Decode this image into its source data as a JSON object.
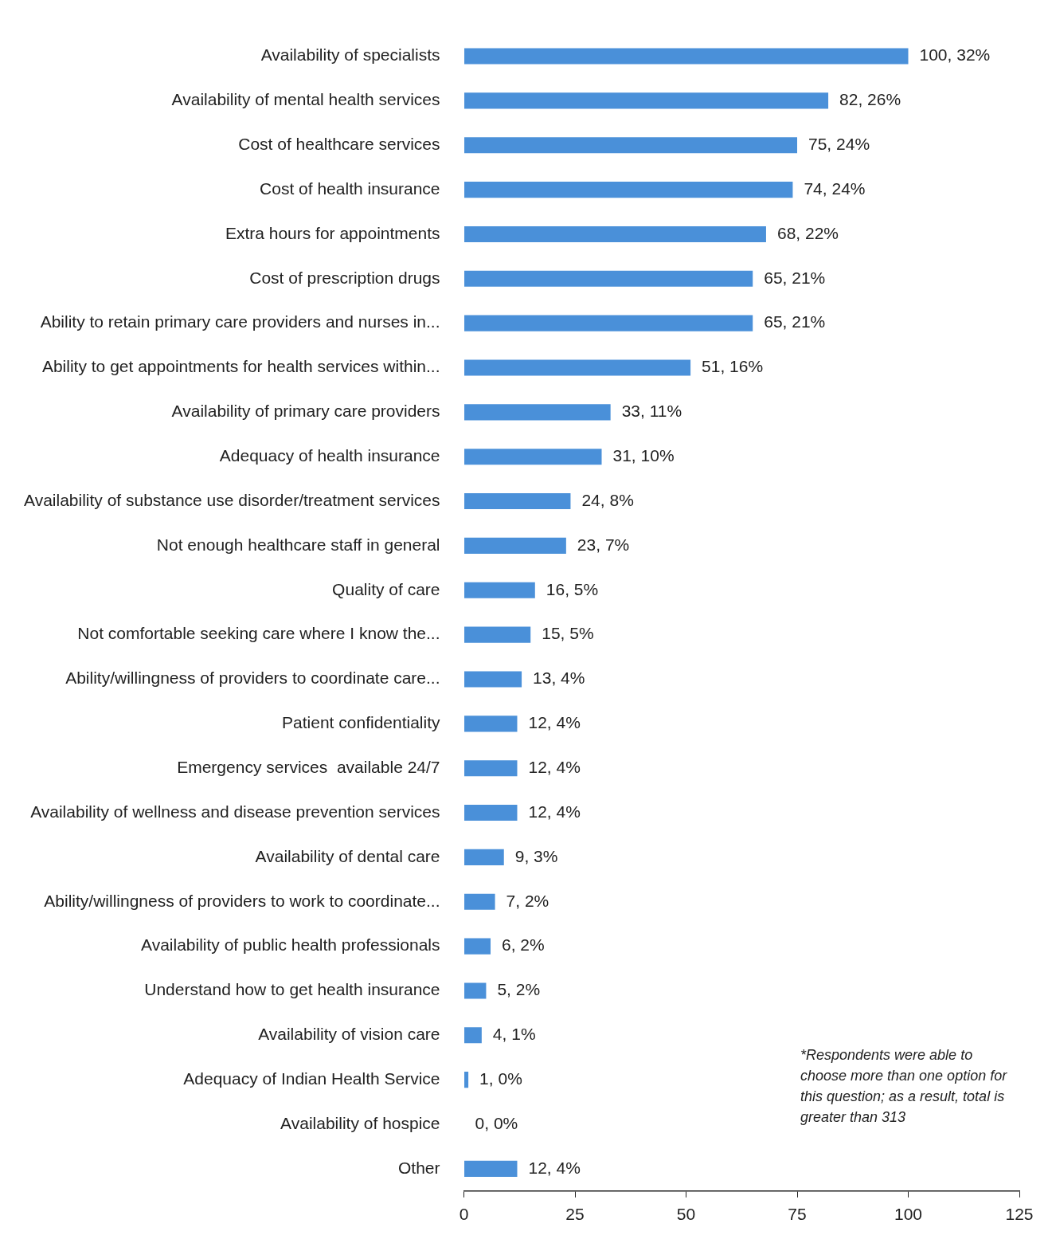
{
  "chart_data": {
    "type": "bar",
    "orientation": "horizontal",
    "categories": [
      "Availability of specialists",
      "Availability of mental health services",
      "Cost of healthcare services",
      "Cost of health insurance",
      "Extra hours for appointments",
      "Cost of prescription drugs",
      "Ability to retain primary care providers and nurses in...",
      "Ability to get appointments for health services within...",
      "Availability of primary care providers",
      "Adequacy of health insurance",
      "Availability of substance use disorder/treatment services",
      "Not enough healthcare staff in general",
      "Quality of care",
      "Not comfortable seeking care where I know the...",
      "Ability/willingness of providers to coordinate care...",
      "Patient confidentiality",
      "Emergency services  available 24/7",
      "Availability of wellness and disease prevention services",
      "Availability of dental care",
      "Ability/willingness of providers to work to coordinate...",
      "Availability of public health professionals",
      "Understand how to get health insurance",
      "Availability of vision care",
      "Adequacy of Indian Health Service",
      "Availability of hospice",
      "Other"
    ],
    "values": [
      100,
      82,
      75,
      74,
      68,
      65,
      65,
      51,
      33,
      31,
      24,
      23,
      16,
      15,
      13,
      12,
      12,
      12,
      9,
      7,
      6,
      5,
      4,
      1,
      0,
      12
    ],
    "value_labels": [
      "100, 32%",
      "82, 26%",
      "75, 24%",
      "74, 24%",
      "68, 22%",
      "65, 21%",
      "65, 21%",
      "51, 16%",
      "33, 11%",
      "31, 10%",
      "24, 8%",
      "23, 7%",
      "16, 5%",
      "15, 5%",
      "13, 4%",
      "12, 4%",
      "12, 4%",
      "12, 4%",
      "9, 3%",
      "7, 2%",
      "6, 2%",
      "5, 2%",
      "4, 1%",
      "1, 0%",
      "0, 0%",
      "12, 4%"
    ],
    "color": "#4a90d9",
    "xlim": [
      0,
      125
    ],
    "xticks": [
      0,
      25,
      50,
      75,
      100,
      125
    ],
    "grid": false,
    "legend": false,
    "annotations": [
      "*Respondents were able to choose more than one option for this question; as a result, total is greater than 313"
    ]
  }
}
